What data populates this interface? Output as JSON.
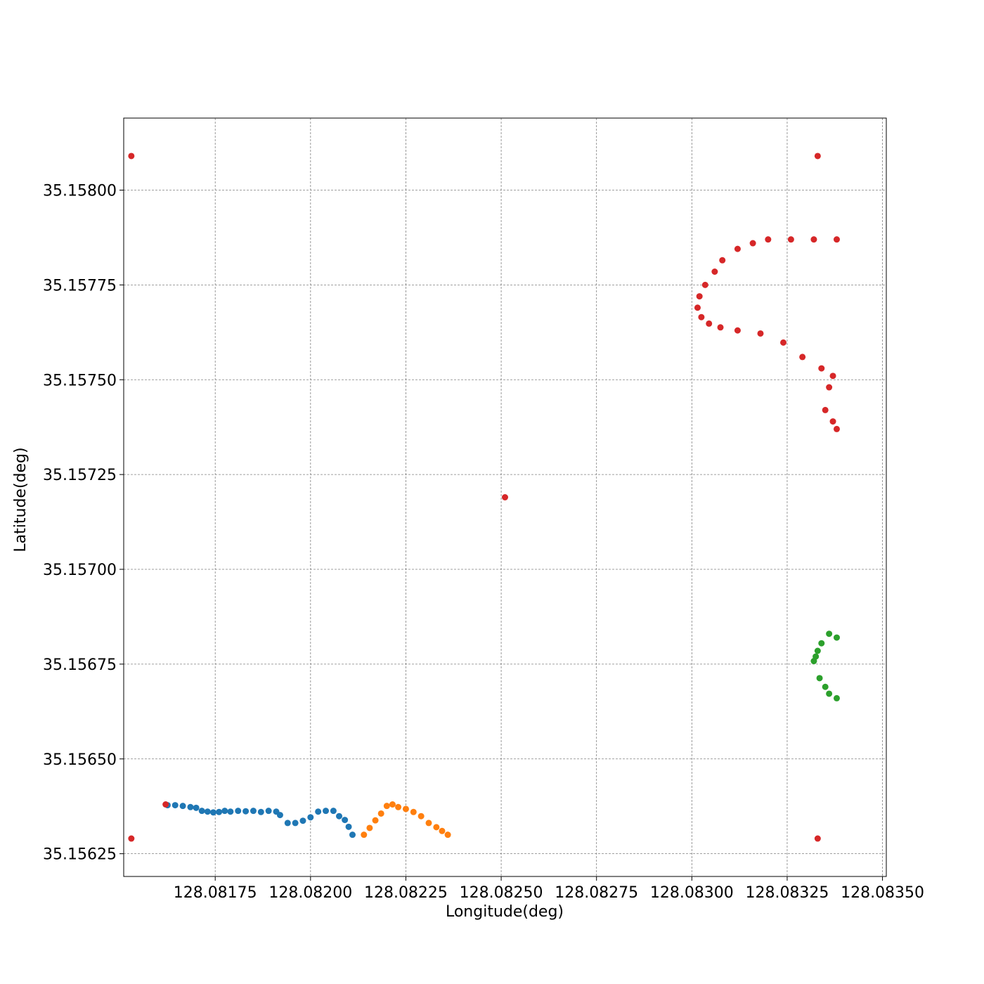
{
  "chart_data": {
    "type": "scatter",
    "xlabel": "Longitude(deg)",
    "ylabel": "Latitude(deg)",
    "xlim": [
      128.08151,
      128.08351
    ],
    "ylim": [
      35.15619,
      35.15819
    ],
    "grid": true,
    "xticks": [
      128.08175,
      128.082,
      128.08225,
      128.0825,
      128.08275,
      128.083,
      128.08325,
      128.0835
    ],
    "xtick_labels": [
      "128.08175",
      "128.08200",
      "128.08225",
      "128.08250",
      "128.08275",
      "128.08300",
      "128.08325",
      "128.08350"
    ],
    "yticks": [
      35.15625,
      35.1565,
      35.15675,
      35.157,
      35.15725,
      35.1575,
      35.15775,
      35.158
    ],
    "ytick_labels": [
      "35.15625",
      "35.15650",
      "35.15675",
      "35.15700",
      "35.15725",
      "35.15750",
      "35.15775",
      "35.15800"
    ],
    "series": [
      {
        "color": "#1f77b4",
        "x": [
          128.081625,
          128.081645,
          128.081665,
          128.081685,
          128.0817,
          128.081715,
          128.08173,
          128.081745,
          128.08176,
          128.081775,
          128.08179,
          128.08181,
          128.08183,
          128.08185,
          128.08187,
          128.08189,
          128.08191,
          128.08192,
          128.08194,
          128.08196,
          128.08198,
          128.082,
          128.08202,
          128.08204,
          128.08206,
          128.082075,
          128.08209,
          128.0821,
          128.08211
        ],
        "y": [
          35.156378,
          35.156378,
          35.156376,
          35.156373,
          35.156371,
          35.156363,
          35.156361,
          35.156359,
          35.15636,
          35.156363,
          35.156361,
          35.156363,
          35.156362,
          35.156363,
          35.15636,
          35.156363,
          35.156361,
          35.156352,
          35.156331,
          35.156331,
          35.156337,
          35.156346,
          35.156361,
          35.156363,
          35.156363,
          35.156349,
          35.156339,
          35.156321,
          35.1563
        ]
      },
      {
        "color": "#ff7f0e",
        "x": [
          128.08214,
          128.082155,
          128.08217,
          128.082185,
          128.0822,
          128.082215,
          128.08223,
          128.08225,
          128.08227,
          128.08229,
          128.08231,
          128.08233,
          128.082345,
          128.08236
        ],
        "y": [
          35.1563,
          35.156318,
          35.156338,
          35.156356,
          35.156376,
          35.15638,
          35.156373,
          35.156368,
          35.15636,
          35.156349,
          35.156331,
          35.15632,
          35.15631,
          35.1563
        ]
      },
      {
        "color": "#2ca02c",
        "x": [
          128.08338,
          128.08336,
          128.08334,
          128.08333,
          128.083325,
          128.08332,
          128.083335,
          128.08335,
          128.08336,
          128.08338
        ],
        "y": [
          35.15682,
          35.15683,
          35.156805,
          35.156785,
          35.15677,
          35.156758,
          35.156713,
          35.15669,
          35.156672,
          35.15666
        ]
      },
      {
        "color": "#d62728",
        "x": [
          128.08338,
          128.08332,
          128.08326,
          128.0832,
          128.08316,
          128.08312,
          128.08308,
          128.08306,
          128.083035,
          128.08302,
          128.083015,
          128.083025,
          128.083045,
          128.083075,
          128.08312,
          128.08318,
          128.08324,
          128.08329,
          128.08334,
          128.08337,
          128.08336,
          128.08335,
          128.08337,
          128.08338,
          128.08162,
          128.08153,
          128.08153,
          128.08333,
          128.08333,
          128.08251
        ],
        "y": [
          35.15787,
          35.15787,
          35.15787,
          35.15787,
          35.15786,
          35.157845,
          35.157815,
          35.157785,
          35.15775,
          35.15772,
          35.15769,
          35.157665,
          35.157648,
          35.157638,
          35.15763,
          35.157622,
          35.157598,
          35.15756,
          35.15753,
          35.15751,
          35.15748,
          35.15742,
          35.15739,
          35.15737,
          35.15638,
          35.15809,
          35.15629,
          35.15809,
          35.15629,
          35.15719
        ]
      }
    ]
  }
}
